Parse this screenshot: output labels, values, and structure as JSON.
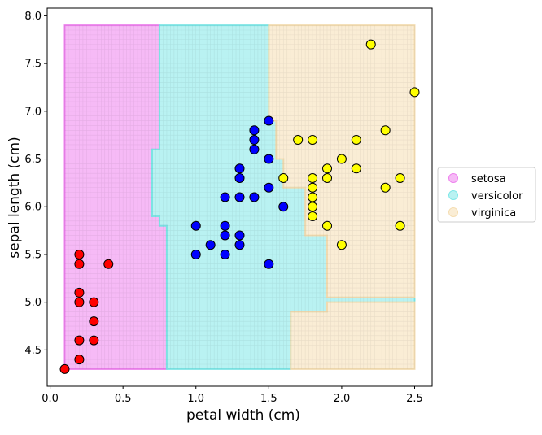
{
  "chart_data": {
    "type": "scatter",
    "xlabel": "petal width (cm)",
    "ylabel": "sepal length (cm)",
    "xlim": [
      -0.02,
      2.62
    ],
    "ylim": [
      4.12,
      8.08
    ],
    "xticks": [
      0.0,
      0.5,
      1.0,
      1.5,
      2.0,
      2.5
    ],
    "xtick_labels": [
      "0.0",
      "0.5",
      "1.0",
      "1.5",
      "2.0",
      "2.5"
    ],
    "yticks": [
      4.5,
      5.0,
      5.5,
      6.0,
      6.5,
      7.0,
      7.5,
      8.0
    ],
    "ytick_labels": [
      "4.5",
      "5.0",
      "5.5",
      "6.0",
      "6.5",
      "7.0",
      "7.5",
      "8.0"
    ],
    "grid": false,
    "legend_position": "center-right-outside",
    "legend": [
      {
        "label": "setosa",
        "color": "#ee82ee"
      },
      {
        "label": "versicolor",
        "color": "#7fe8e8"
      },
      {
        "label": "virginica",
        "color": "#f5deb3"
      }
    ],
    "decision_regions": [
      {
        "class": "setosa",
        "color": "#ee82ee",
        "polygon": [
          [
            0.1,
            4.3
          ],
          [
            0.8,
            4.3
          ],
          [
            0.8,
            5.8
          ],
          [
            0.75,
            5.8
          ],
          [
            0.75,
            5.9
          ],
          [
            0.7,
            5.9
          ],
          [
            0.7,
            6.6
          ],
          [
            0.75,
            6.6
          ],
          [
            0.75,
            7.9
          ],
          [
            0.1,
            7.9
          ]
        ]
      },
      {
        "class": "versicolor",
        "color": "#7fe8e8",
        "polygon": [
          [
            0.8,
            4.3
          ],
          [
            1.65,
            4.3
          ],
          [
            1.65,
            4.9
          ],
          [
            1.9,
            4.9
          ],
          [
            1.9,
            5.0
          ],
          [
            2.5,
            5.0
          ],
          [
            2.5,
            5.05
          ],
          [
            1.9,
            5.05
          ],
          [
            1.9,
            5.7
          ],
          [
            1.75,
            5.7
          ],
          [
            1.75,
            6.2
          ],
          [
            1.6,
            6.2
          ],
          [
            1.6,
            6.5
          ],
          [
            1.55,
            6.5
          ],
          [
            1.55,
            6.9
          ],
          [
            1.5,
            6.9
          ],
          [
            1.5,
            7.9
          ],
          [
            0.75,
            7.9
          ],
          [
            0.75,
            6.6
          ],
          [
            0.7,
            6.6
          ],
          [
            0.7,
            5.9
          ],
          [
            0.75,
            5.9
          ],
          [
            0.75,
            5.8
          ],
          [
            0.8,
            5.8
          ]
        ]
      },
      {
        "class": "virginica",
        "color": "#f5deb3",
        "polygon": [
          [
            1.65,
            4.3
          ],
          [
            2.5,
            4.3
          ],
          [
            2.5,
            5.0
          ],
          [
            1.9,
            5.0
          ],
          [
            1.9,
            4.9
          ],
          [
            1.65,
            4.9
          ]
        ]
      },
      {
        "class": "virginica",
        "color": "#f5deb3",
        "polygon": [
          [
            1.9,
            5.05
          ],
          [
            2.5,
            5.05
          ],
          [
            2.5,
            7.9
          ],
          [
            1.5,
            7.9
          ],
          [
            1.5,
            6.9
          ],
          [
            1.55,
            6.9
          ],
          [
            1.55,
            6.5
          ],
          [
            1.6,
            6.5
          ],
          [
            1.6,
            6.2
          ],
          [
            1.75,
            6.2
          ],
          [
            1.75,
            5.7
          ],
          [
            1.9,
            5.7
          ]
        ]
      }
    ],
    "series": [
      {
        "name": "setosa",
        "color": "#ff0000",
        "points": [
          [
            0.1,
            4.3
          ],
          [
            0.2,
            4.4
          ],
          [
            0.2,
            4.6
          ],
          [
            0.3,
            4.6
          ],
          [
            0.3,
            4.8
          ],
          [
            0.2,
            5.0
          ],
          [
            0.3,
            5.0
          ],
          [
            0.2,
            5.1
          ],
          [
            0.2,
            5.4
          ],
          [
            0.2,
            5.5
          ],
          [
            0.4,
            5.4
          ]
        ]
      },
      {
        "name": "versicolor",
        "color": "#0000ff",
        "points": [
          [
            1.0,
            5.5
          ],
          [
            1.0,
            5.8
          ],
          [
            1.1,
            5.6
          ],
          [
            1.2,
            5.5
          ],
          [
            1.2,
            5.7
          ],
          [
            1.2,
            5.8
          ],
          [
            1.2,
            6.1
          ],
          [
            1.3,
            5.6
          ],
          [
            1.3,
            5.7
          ],
          [
            1.3,
            6.1
          ],
          [
            1.3,
            6.3
          ],
          [
            1.3,
            6.4
          ],
          [
            1.4,
            6.1
          ],
          [
            1.4,
            6.6
          ],
          [
            1.4,
            6.7
          ],
          [
            1.4,
            6.8
          ],
          [
            1.5,
            5.4
          ],
          [
            1.5,
            6.2
          ],
          [
            1.5,
            6.5
          ],
          [
            1.5,
            6.9
          ],
          [
            1.6,
            6.0
          ]
        ]
      },
      {
        "name": "virginica",
        "color": "#ffff00",
        "points": [
          [
            1.6,
            6.3
          ],
          [
            1.7,
            6.7
          ],
          [
            1.8,
            5.9
          ],
          [
            1.8,
            6.0
          ],
          [
            1.8,
            6.1
          ],
          [
            1.8,
            6.2
          ],
          [
            1.8,
            6.3
          ],
          [
            1.8,
            6.7
          ],
          [
            1.9,
            5.8
          ],
          [
            1.9,
            6.3
          ],
          [
            1.9,
            6.4
          ],
          [
            2.0,
            5.6
          ],
          [
            2.0,
            6.5
          ],
          [
            2.1,
            6.4
          ],
          [
            2.1,
            6.7
          ],
          [
            2.2,
            7.7
          ],
          [
            2.3,
            6.2
          ],
          [
            2.3,
            6.8
          ],
          [
            2.4,
            5.8
          ],
          [
            2.4,
            6.3
          ],
          [
            2.5,
            7.2
          ]
        ]
      }
    ],
    "mesh": {
      "x_start": 0.1,
      "x_end": 2.5,
      "x_step": 0.025,
      "y_start": 4.3,
      "y_end": 7.9,
      "y_step": 0.05
    }
  }
}
